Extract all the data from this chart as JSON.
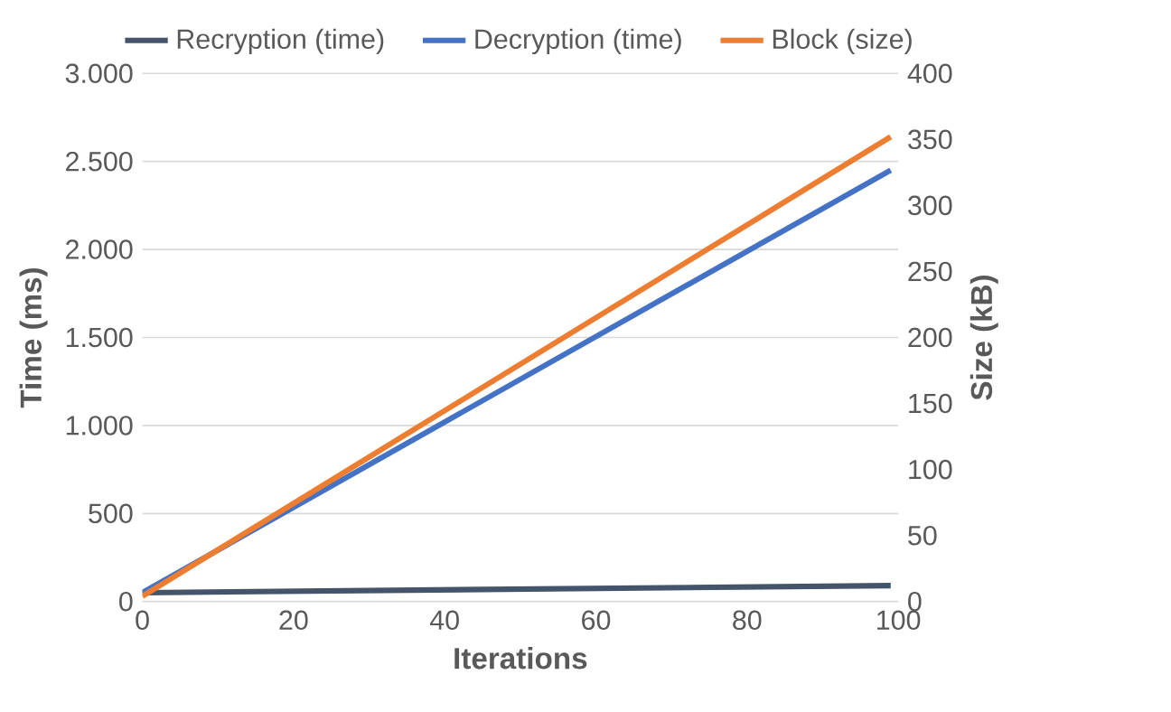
{
  "chart_data": {
    "type": "line",
    "xlabel": "Iterations",
    "ylabel": "Time (ms)",
    "y2label": "Size (kB)",
    "x": [
      0,
      99
    ],
    "series": [
      {
        "name": "Recryption (time)",
        "color": "#44546a",
        "values": [
          50,
          90
        ]
      },
      {
        "name": "Decryption (time)",
        "color": "#4472c4",
        "values": [
          50,
          2450
        ]
      },
      {
        "name": "Block (size)",
        "color": "#ed7d31",
        "values": [
          4,
          352
        ],
        "axis": "y2"
      }
    ],
    "xlim": [
      0,
      100
    ],
    "xticks": [
      0,
      20,
      40,
      60,
      80,
      100
    ],
    "ylim": [
      0,
      3000
    ],
    "yticks": [
      0,
      {
        "value": 500,
        "label": "500"
      },
      {
        "value": 1000,
        "label": "1.000"
      },
      {
        "value": 1500,
        "label": "1.500"
      },
      {
        "value": 2000,
        "label": "2.000"
      },
      {
        "value": 2500,
        "label": "2.500"
      },
      {
        "value": 3000,
        "label": "3.000"
      }
    ],
    "y2lim": [
      0,
      400
    ],
    "y2ticks": [
      0,
      50,
      100,
      150,
      200,
      250,
      300,
      350,
      400
    ],
    "grid": "y",
    "legend": "top",
    "marker": "none",
    "line_style": "solid"
  }
}
